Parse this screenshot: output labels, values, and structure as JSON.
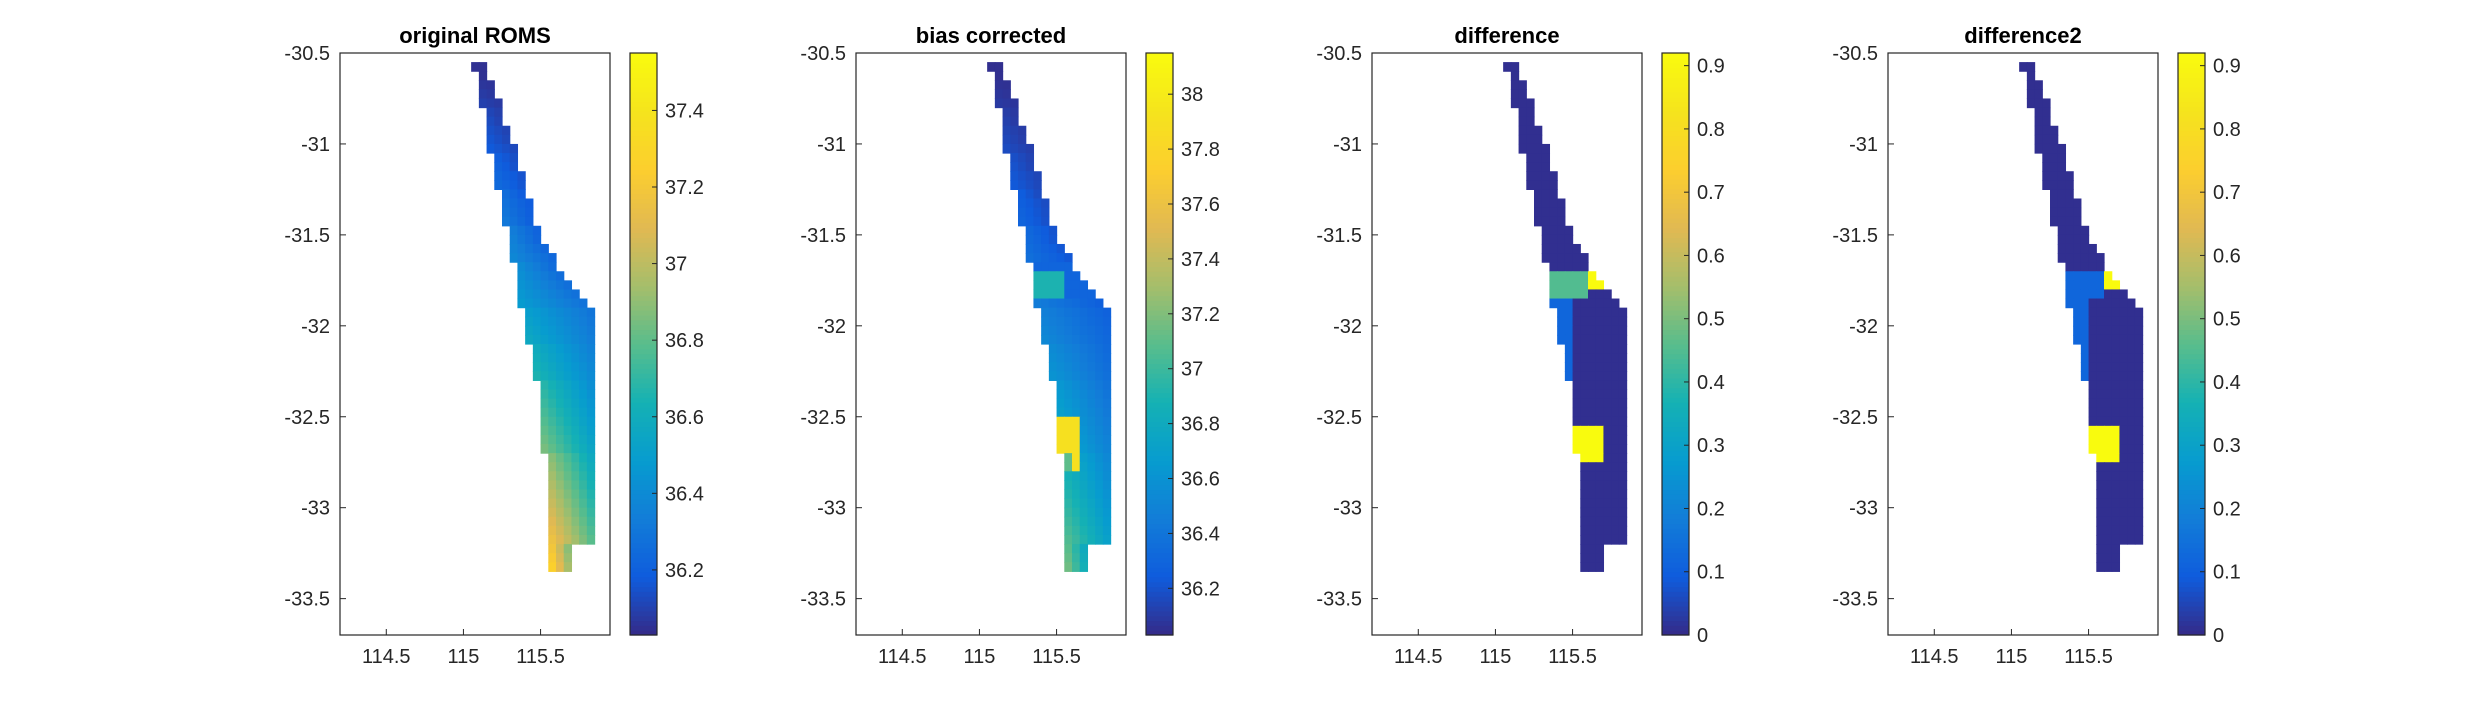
{
  "chart_data": [
    {
      "type": "heatmap",
      "title": "original ROMS",
      "xlabel": "",
      "ylabel": "",
      "xlim": [
        114.2,
        115.95
      ],
      "ylim": [
        -33.7,
        -30.5
      ],
      "xticks": [
        114.5,
        115,
        115.5
      ],
      "xtick_labels": [
        "114.5",
        "115",
        "115.5"
      ],
      "yticks": [
        -30.5,
        -31,
        -31.5,
        -32,
        -32.5,
        -33,
        -33.5
      ],
      "ytick_labels": [
        "-30.5",
        "-31",
        "-31.5",
        "-32",
        "-32.5",
        "-33",
        "-33.5"
      ],
      "colorbar": {
        "range": [
          36.03,
          37.55
        ],
        "ticks": [
          36.2,
          36.4,
          36.6,
          36.8,
          37,
          37.2,
          37.4
        ],
        "tick_labels": [
          "36.2",
          "36.4",
          "36.6",
          "36.8",
          "37",
          "37.2",
          "37.4"
        ],
        "colormap": "parula"
      },
      "field": {
        "description": "coastal strip of ROMS cells; values increase from the northern tip and offshore edge toward the southern nearshore end",
        "north_value": 36.05,
        "nearshore_gain": 0.85,
        "south_nearshore_max": 37.5
      },
      "patches": []
    },
    {
      "type": "heatmap",
      "title": "bias corrected",
      "xlabel": "",
      "ylabel": "",
      "xlim": [
        114.2,
        115.95
      ],
      "ylim": [
        -33.7,
        -30.5
      ],
      "xticks": [
        114.5,
        115,
        115.5
      ],
      "xtick_labels": [
        "114.5",
        "115",
        "115.5"
      ],
      "yticks": [
        -30.5,
        -31,
        -31.5,
        -32,
        -32.5,
        -33,
        -33.5
      ],
      "ytick_labels": [
        "-30.5",
        "-31",
        "-31.5",
        "-32",
        "-32.5",
        "-33",
        "-33.5"
      ],
      "colorbar": {
        "range": [
          36.03,
          38.15
        ],
        "ticks": [
          36.2,
          36.4,
          36.6,
          36.8,
          37,
          37.2,
          37.4,
          37.6,
          37.8,
          38
        ],
        "tick_labels": [
          "36.2",
          "36.4",
          "36.6",
          "36.8",
          "37",
          "37.2",
          "37.4",
          "37.6",
          "37.8",
          "38"
        ],
        "colormap": "parula"
      },
      "field": {
        "description": "same strip as original ROMS with bias-corrected patches",
        "north_value": 36.05,
        "nearshore_gain": 0.8,
        "south_nearshore_max": 37.35
      },
      "patches": [
        {
          "lat_range": [
            -31.85,
            -31.65
          ],
          "lon_range": [
            115.35,
            115.85
          ],
          "value": 36.3
        },
        {
          "lat_range": [
            -31.85,
            -31.7
          ],
          "lon_range": [
            115.3,
            115.55
          ],
          "value": 36.9
        },
        {
          "lat_range": [
            -32.8,
            -32.5
          ],
          "lon_range": [
            115.4,
            115.65
          ],
          "value": 37.9
        },
        {
          "lat_range": [
            -32.8,
            -32.7
          ],
          "lon_range": [
            115.45,
            115.6
          ],
          "value": 37.1
        }
      ]
    },
    {
      "type": "heatmap",
      "title": "difference",
      "xlabel": "",
      "ylabel": "",
      "xlim": [
        114.2,
        115.95
      ],
      "ylim": [
        -33.7,
        -30.5
      ],
      "xticks": [
        114.5,
        115,
        115.5
      ],
      "xtick_labels": [
        "114.5",
        "115",
        "115.5"
      ],
      "yticks": [
        -30.5,
        -31,
        -31.5,
        -32,
        -32.5,
        -33,
        -33.5
      ],
      "ytick_labels": [
        "-30.5",
        "-31",
        "-31.5",
        "-32",
        "-32.5",
        "-33",
        "-33.5"
      ],
      "colorbar": {
        "range": [
          0,
          0.92
        ],
        "ticks": [
          0,
          0.1,
          0.2,
          0.3,
          0.4,
          0.5,
          0.6,
          0.7,
          0.8,
          0.9
        ],
        "tick_labels": [
          "0",
          "0.1",
          "0.2",
          "0.3",
          "0.4",
          "0.5",
          "0.6",
          "0.7",
          "0.8",
          "0.9"
        ],
        "colormap": "parula"
      },
      "field": {
        "description": "near-zero difference everywhere except corrected patches",
        "background_value": 0.01
      },
      "patches": [
        {
          "lat_range": [
            -32.4,
            -31.8
          ],
          "lon_range": [
            115.3,
            115.5
          ],
          "value": 0.12
        },
        {
          "lat_range": [
            -31.85,
            -31.7
          ],
          "lon_range": [
            115.3,
            115.6
          ],
          "value": 0.45
        },
        {
          "lat_range": [
            -31.8,
            -31.6
          ],
          "lon_range": [
            115.6,
            115.85
          ],
          "value": 0.92
        },
        {
          "lat_range": [
            -32.65,
            -32.55
          ],
          "lon_range": [
            115.45,
            115.5
          ],
          "value": 0.45
        },
        {
          "lat_range": [
            -32.75,
            -32.55
          ],
          "lon_range": [
            115.5,
            115.7
          ],
          "value": 0.92
        }
      ]
    },
    {
      "type": "heatmap",
      "title": "difference2",
      "xlabel": "",
      "ylabel": "",
      "xlim": [
        114.2,
        115.95
      ],
      "ylim": [
        -33.7,
        -30.5
      ],
      "xticks": [
        114.5,
        115,
        115.5
      ],
      "xtick_labels": [
        "114.5",
        "115",
        "115.5"
      ],
      "yticks": [
        -30.5,
        -31,
        -31.5,
        -32,
        -32.5,
        -33,
        -33.5
      ],
      "ytick_labels": [
        "-30.5",
        "-31",
        "-31.5",
        "-32",
        "-32.5",
        "-33",
        "-33.5"
      ],
      "colorbar": {
        "range": [
          0,
          0.92
        ],
        "ticks": [
          0,
          0.1,
          0.2,
          0.3,
          0.4,
          0.5,
          0.6,
          0.7,
          0.8,
          0.9
        ],
        "tick_labels": [
          "0",
          "0.1",
          "0.2",
          "0.3",
          "0.4",
          "0.5",
          "0.6",
          "0.7",
          "0.8",
          "0.9"
        ],
        "colormap": "parula"
      },
      "field": {
        "description": "near-zero difference everywhere except corrected patches",
        "background_value": 0.01
      },
      "patches": [
        {
          "lat_range": [
            -32.4,
            -31.8
          ],
          "lon_range": [
            115.3,
            115.5
          ],
          "value": 0.12
        },
        {
          "lat_range": [
            -31.85,
            -31.7
          ],
          "lon_range": [
            115.3,
            115.6
          ],
          "value": 0.12
        },
        {
          "lat_range": [
            -31.8,
            -31.6
          ],
          "lon_range": [
            115.6,
            115.85
          ],
          "value": 0.92
        },
        {
          "lat_range": [
            -32.75,
            -32.55
          ],
          "lon_range": [
            115.5,
            115.7
          ],
          "value": 0.92
        }
      ]
    }
  ]
}
